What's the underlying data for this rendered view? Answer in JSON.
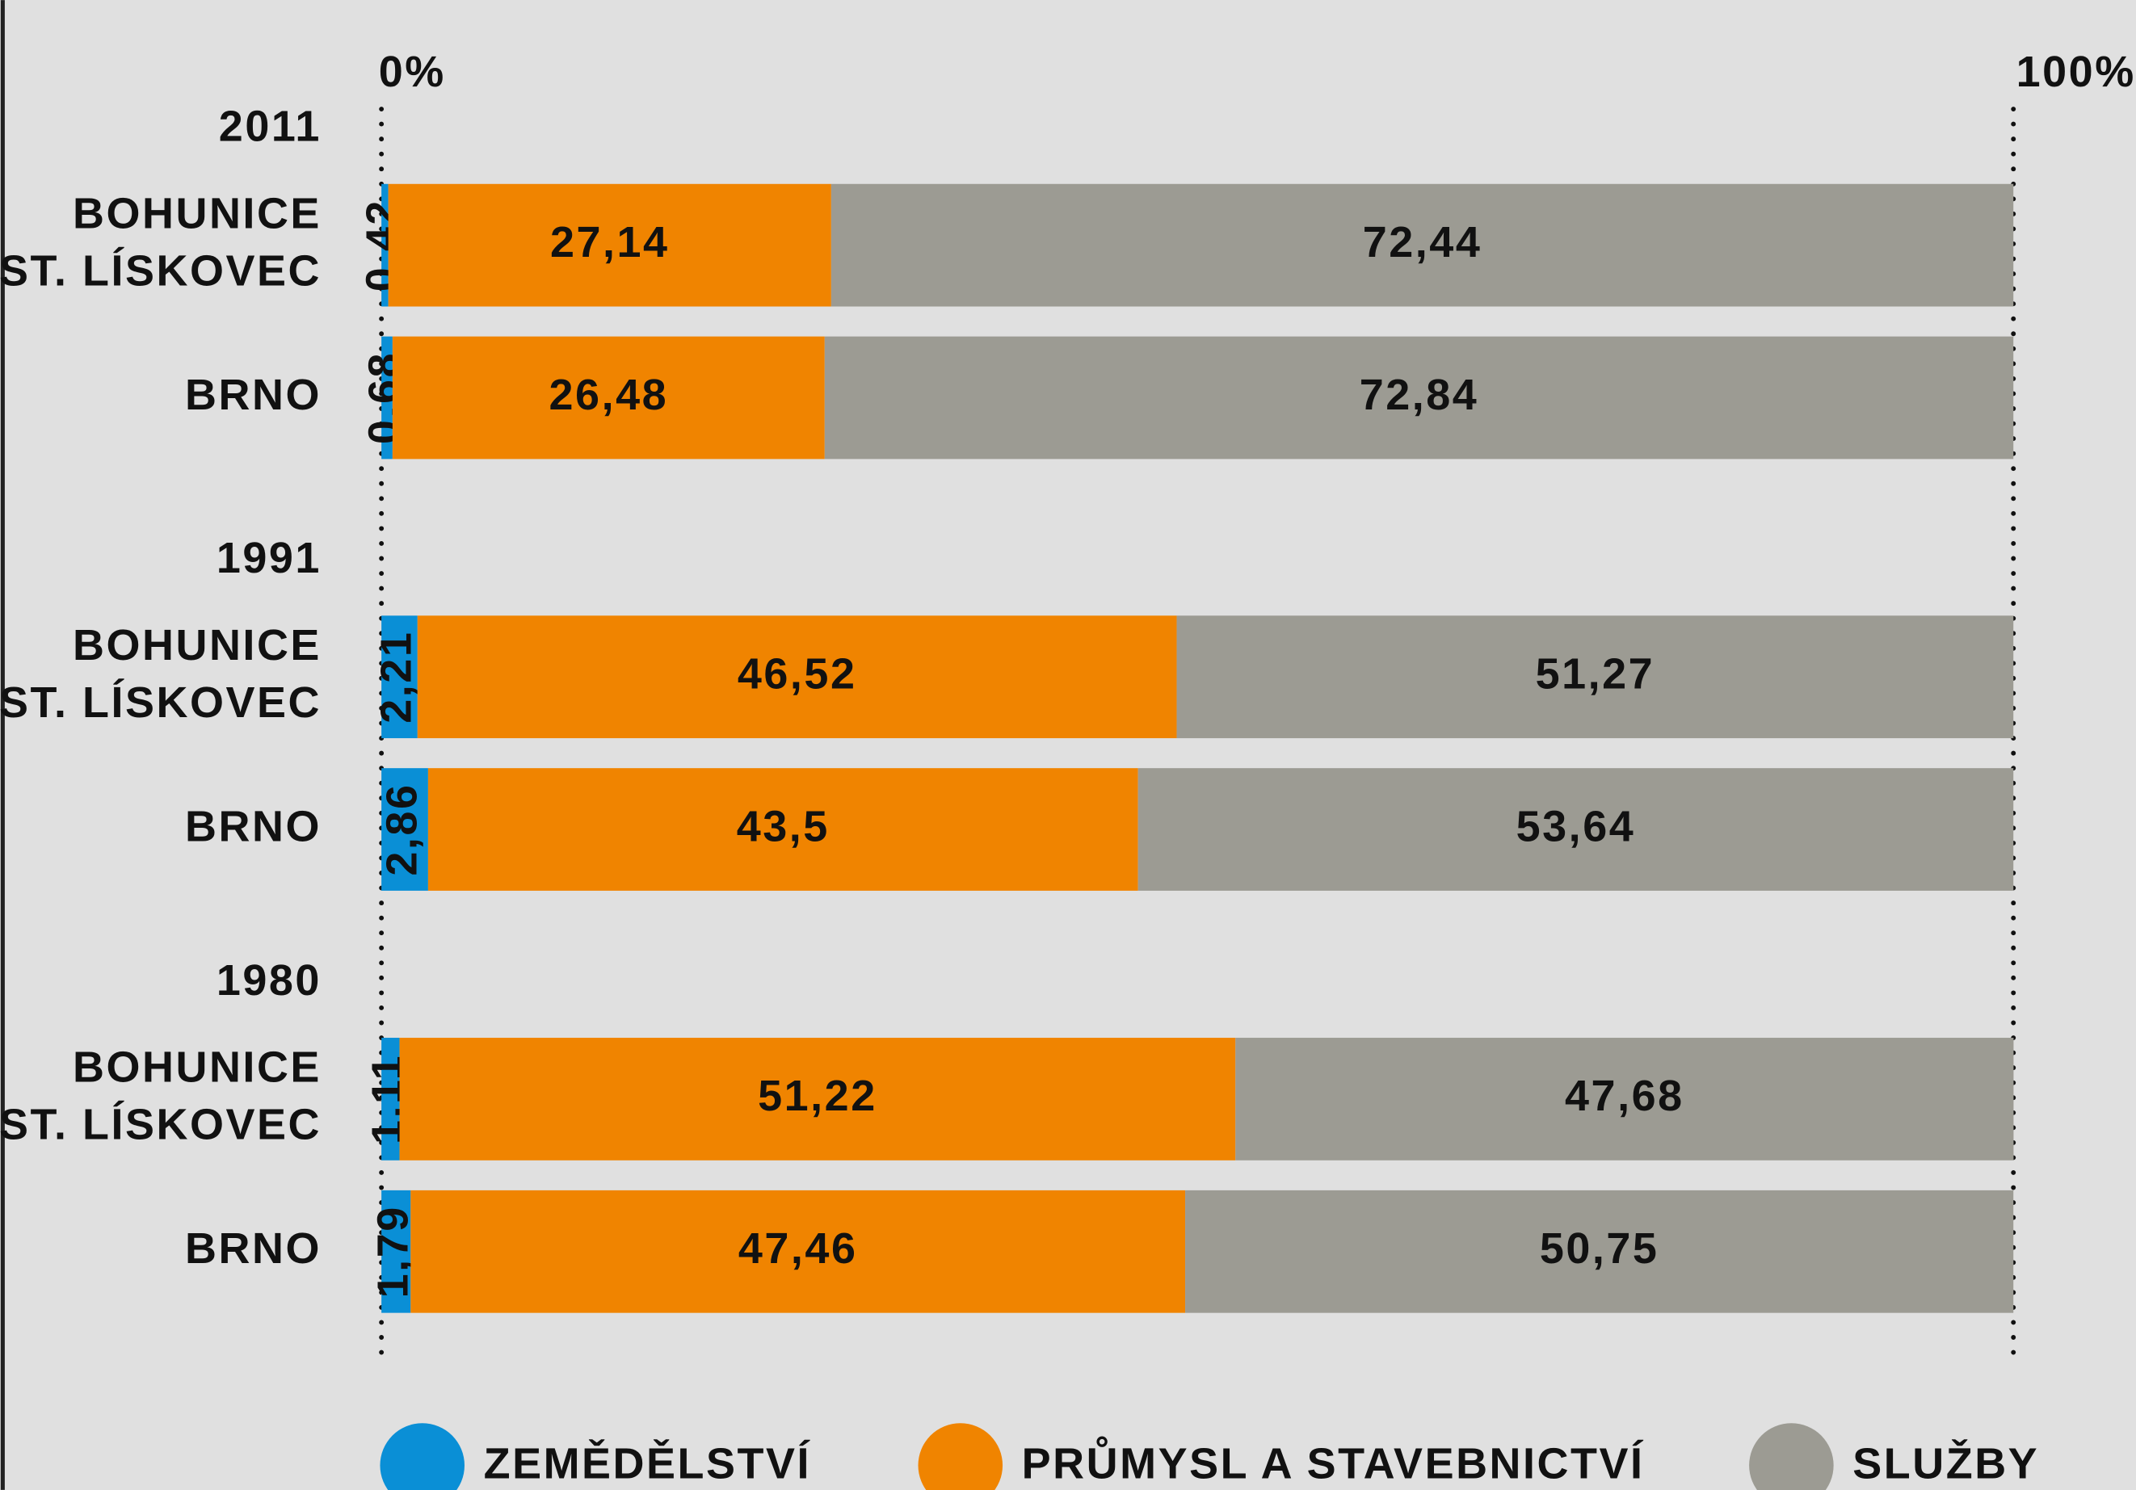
{
  "chart_data": {
    "type": "stacked-bar-horizontal",
    "groups": [
      "2011",
      "1991",
      "1980"
    ],
    "categories": [
      [
        "BOHUNICE",
        "ST. LÍSKOVEC"
      ],
      [
        "BRNO"
      ],
      [
        "BOHUNICE",
        "ST. LÍSKOVEC"
      ],
      [
        "BRNO"
      ],
      [
        "BOHUNICE",
        "ST. LÍSKOVEC"
      ],
      [
        "BRNO"
      ]
    ],
    "series": [
      {
        "name": "ZEMĚDĚLSTVÍ",
        "color": "#0a8fd6",
        "values": [
          0.42,
          0.68,
          2.21,
          2.86,
          1.11,
          1.79
        ],
        "value_labels": [
          "0,42",
          "0,68",
          "2,21",
          "2,86",
          "1,11",
          "1,79"
        ]
      },
      {
        "name": "PRŮMYSL A STAVEBNICTVÍ",
        "color": "#f08400",
        "values": [
          27.14,
          26.48,
          46.52,
          43.5,
          51.22,
          47.46
        ],
        "value_labels": [
          "27,14",
          "26,48",
          "46,52",
          "43,5",
          "51,22",
          "47,46"
        ]
      },
      {
        "name": "SLUŽBY",
        "color": "#9c9b93",
        "values": [
          72.44,
          72.84,
          51.27,
          53.64,
          47.68,
          50.75
        ],
        "value_labels": [
          "72,44",
          "72,84",
          "51,27",
          "53,64",
          "47,68",
          "50,75"
        ]
      }
    ],
    "xlim": [
      0,
      100
    ],
    "xticks": [
      {
        "value": 0,
        "label": "0%"
      },
      {
        "value": 100,
        "label": "100%"
      }
    ],
    "grid": true,
    "group_color": "#d8102c"
  }
}
